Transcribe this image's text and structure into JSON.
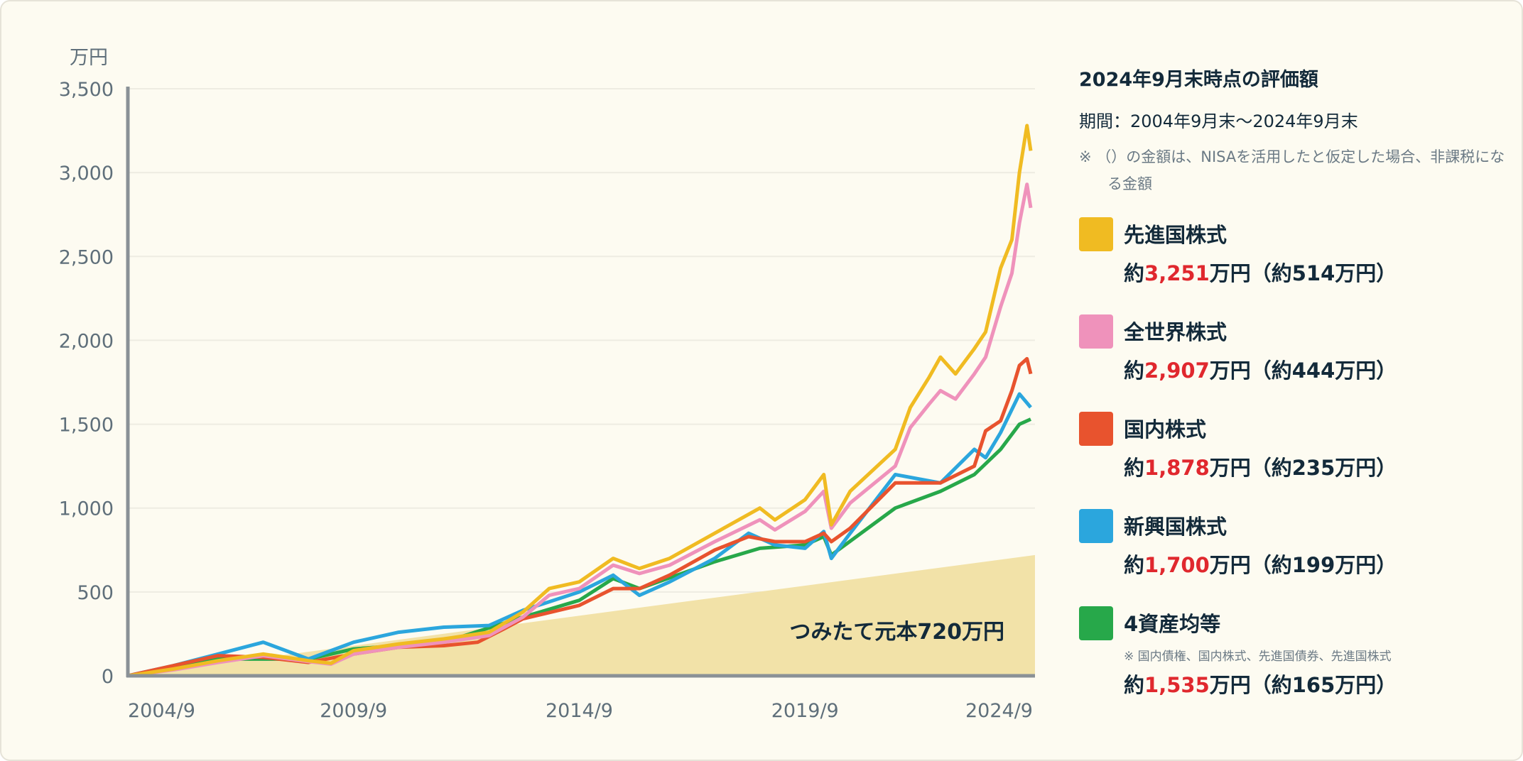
{
  "chart_data": {
    "type": "line",
    "ylabel": "万円",
    "ylim": [
      0,
      3500
    ],
    "yticks": [
      "0",
      "500",
      "1,000",
      "1,500",
      "2,000",
      "2,500",
      "3,000",
      "3,500"
    ],
    "ytick_values": [
      0,
      500,
      1000,
      1500,
      2000,
      2500,
      3000,
      3500
    ],
    "xticks": [
      "2004/9",
      "2009/9",
      "2014/9",
      "2019/9",
      "2024/9"
    ],
    "xlim": [
      "2004/9",
      "2024/9"
    ],
    "grid": true,
    "principal": {
      "label": "つみたて元本720万円",
      "start": 0,
      "end": 720,
      "color": "#f2e2a8"
    },
    "series": [
      {
        "name": "先進国株式",
        "color": "#f0bb22",
        "points": [
          [
            "2004/9",
            0
          ],
          [
            "2005/9",
            40
          ],
          [
            "2006/9",
            90
          ],
          [
            "2007/9",
            130
          ],
          [
            "2008/9",
            90
          ],
          [
            "2009/3",
            75
          ],
          [
            "2009/9",
            150
          ],
          [
            "2010/9",
            190
          ],
          [
            "2011/9",
            220
          ],
          [
            "2012/9",
            260
          ],
          [
            "2013/6",
            380
          ],
          [
            "2014/1",
            520
          ],
          [
            "2014/9",
            560
          ],
          [
            "2015/6",
            700
          ],
          [
            "2016/1",
            640
          ],
          [
            "2016/9",
            700
          ],
          [
            "2017/9",
            850
          ],
          [
            "2018/9",
            1000
          ],
          [
            "2019/1",
            930
          ],
          [
            "2019/9",
            1050
          ],
          [
            "2020/2",
            1200
          ],
          [
            "2020/4",
            900
          ],
          [
            "2020/9",
            1100
          ],
          [
            "2021/9",
            1350
          ],
          [
            "2022/1",
            1600
          ],
          [
            "2022/6",
            1780
          ],
          [
            "2022/9",
            1900
          ],
          [
            "2023/1",
            1800
          ],
          [
            "2023/6",
            1950
          ],
          [
            "2023/9",
            2050
          ],
          [
            "2024/1",
            2430
          ],
          [
            "2024/4",
            2600
          ],
          [
            "2024/6",
            3000
          ],
          [
            "2024/8",
            3280
          ],
          [
            "2024/9",
            3130
          ]
        ]
      },
      {
        "name": "全世界株式",
        "color": "#ef92bb",
        "points": [
          [
            "2004/9",
            0
          ],
          [
            "2005/9",
            35
          ],
          [
            "2006/9",
            80
          ],
          [
            "2007/9",
            120
          ],
          [
            "2008/9",
            85
          ],
          [
            "2009/3",
            70
          ],
          [
            "2009/9",
            130
          ],
          [
            "2010/9",
            170
          ],
          [
            "2011/9",
            200
          ],
          [
            "2012/9",
            240
          ],
          [
            "2013/6",
            350
          ],
          [
            "2014/1",
            480
          ],
          [
            "2014/9",
            520
          ],
          [
            "2015/6",
            660
          ],
          [
            "2016/1",
            610
          ],
          [
            "2016/9",
            660
          ],
          [
            "2017/9",
            800
          ],
          [
            "2018/9",
            930
          ],
          [
            "2019/1",
            870
          ],
          [
            "2019/9",
            980
          ],
          [
            "2020/2",
            1100
          ],
          [
            "2020/4",
            880
          ],
          [
            "2020/9",
            1030
          ],
          [
            "2021/9",
            1250
          ],
          [
            "2022/1",
            1480
          ],
          [
            "2022/6",
            1620
          ],
          [
            "2022/9",
            1700
          ],
          [
            "2023/1",
            1650
          ],
          [
            "2023/6",
            1800
          ],
          [
            "2023/9",
            1900
          ],
          [
            "2024/1",
            2200
          ],
          [
            "2024/4",
            2400
          ],
          [
            "2024/6",
            2700
          ],
          [
            "2024/8",
            2930
          ],
          [
            "2024/9",
            2790
          ]
        ]
      },
      {
        "name": "国内株式",
        "color": "#e8532e",
        "points": [
          [
            "2004/9",
            0
          ],
          [
            "2005/9",
            60
          ],
          [
            "2006/9",
            120
          ],
          [
            "2007/9",
            110
          ],
          [
            "2008/9",
            80
          ],
          [
            "2009/9",
            130
          ],
          [
            "2010/9",
            170
          ],
          [
            "2011/9",
            180
          ],
          [
            "2012/6",
            200
          ],
          [
            "2013/1",
            280
          ],
          [
            "2013/6",
            340
          ],
          [
            "2014/9",
            420
          ],
          [
            "2015/6",
            520
          ],
          [
            "2016/1",
            520
          ],
          [
            "2016/9",
            600
          ],
          [
            "2017/9",
            750
          ],
          [
            "2018/6",
            830
          ],
          [
            "2019/1",
            800
          ],
          [
            "2019/9",
            800
          ],
          [
            "2020/2",
            850
          ],
          [
            "2020/4",
            800
          ],
          [
            "2020/9",
            880
          ],
          [
            "2021/9",
            1150
          ],
          [
            "2022/9",
            1150
          ],
          [
            "2023/6",
            1250
          ],
          [
            "2023/9",
            1460
          ],
          [
            "2024/1",
            1520
          ],
          [
            "2024/4",
            1700
          ],
          [
            "2024/6",
            1850
          ],
          [
            "2024/8",
            1890
          ],
          [
            "2024/9",
            1800
          ]
        ]
      },
      {
        "name": "新興国株式",
        "color": "#2ba6dd",
        "points": [
          [
            "2004/9",
            0
          ],
          [
            "2005/9",
            60
          ],
          [
            "2006/9",
            130
          ],
          [
            "2007/9",
            200
          ],
          [
            "2008/9",
            100
          ],
          [
            "2009/9",
            200
          ],
          [
            "2010/9",
            260
          ],
          [
            "2011/9",
            290
          ],
          [
            "2012/9",
            300
          ],
          [
            "2013/6",
            390
          ],
          [
            "2014/9",
            500
          ],
          [
            "2015/6",
            600
          ],
          [
            "2016/1",
            480
          ],
          [
            "2016/9",
            560
          ],
          [
            "2017/9",
            700
          ],
          [
            "2018/6",
            850
          ],
          [
            "2019/1",
            780
          ],
          [
            "2019/9",
            760
          ],
          [
            "2020/2",
            860
          ],
          [
            "2020/4",
            700
          ],
          [
            "2020/9",
            850
          ],
          [
            "2021/9",
            1200
          ],
          [
            "2022/9",
            1150
          ],
          [
            "2023/6",
            1350
          ],
          [
            "2023/9",
            1300
          ],
          [
            "2024/1",
            1450
          ],
          [
            "2024/6",
            1680
          ],
          [
            "2024/9",
            1600
          ]
        ]
      },
      {
        "name": "4資産均等",
        "color": "#27a84a",
        "points": [
          [
            "2004/9",
            0
          ],
          [
            "2006/9",
            100
          ],
          [
            "2008/9",
            100
          ],
          [
            "2009/9",
            160
          ],
          [
            "2011/9",
            200
          ],
          [
            "2013/6",
            350
          ],
          [
            "2014/9",
            450
          ],
          [
            "2015/6",
            580
          ],
          [
            "2016/1",
            520
          ],
          [
            "2017/9",
            680
          ],
          [
            "2018/9",
            760
          ],
          [
            "2019/9",
            780
          ],
          [
            "2020/2",
            830
          ],
          [
            "2020/4",
            720
          ],
          [
            "2021/9",
            1000
          ],
          [
            "2022/9",
            1100
          ],
          [
            "2023/6",
            1200
          ],
          [
            "2024/1",
            1350
          ],
          [
            "2024/6",
            1500
          ],
          [
            "2024/9",
            1530
          ]
        ]
      }
    ]
  },
  "panel": {
    "title": "2024年9月末時点の評価額",
    "period": "期間：2004年9月末〜2024年9月末",
    "note": "※ （）の金額は、NISAを活用したと仮定した場合、非課税になる金額",
    "items": [
      {
        "name": "先進国株式",
        "color": "#f0bb22",
        "prefix": "約",
        "amount": "3,251",
        "suffix": "万円（約514万円）"
      },
      {
        "name": "全世界株式",
        "color": "#ef92bb",
        "prefix": "約",
        "amount": "2,907",
        "suffix": "万円（約444万円）"
      },
      {
        "name": "国内株式",
        "color": "#e8532e",
        "prefix": "約",
        "amount": "1,878",
        "suffix": "万円（約235万円）"
      },
      {
        "name": "新興国株式",
        "color": "#2ba6dd",
        "prefix": "約",
        "amount": "1,700",
        "suffix": "万円（約199万円）"
      },
      {
        "name": "4資産均等",
        "color": "#27a84a",
        "sub": "※ 国内債権、国内株式、先進国債券、先進国株式",
        "prefix": "約",
        "amount": "1,535",
        "suffix": "万円（約165万円）"
      }
    ]
  }
}
